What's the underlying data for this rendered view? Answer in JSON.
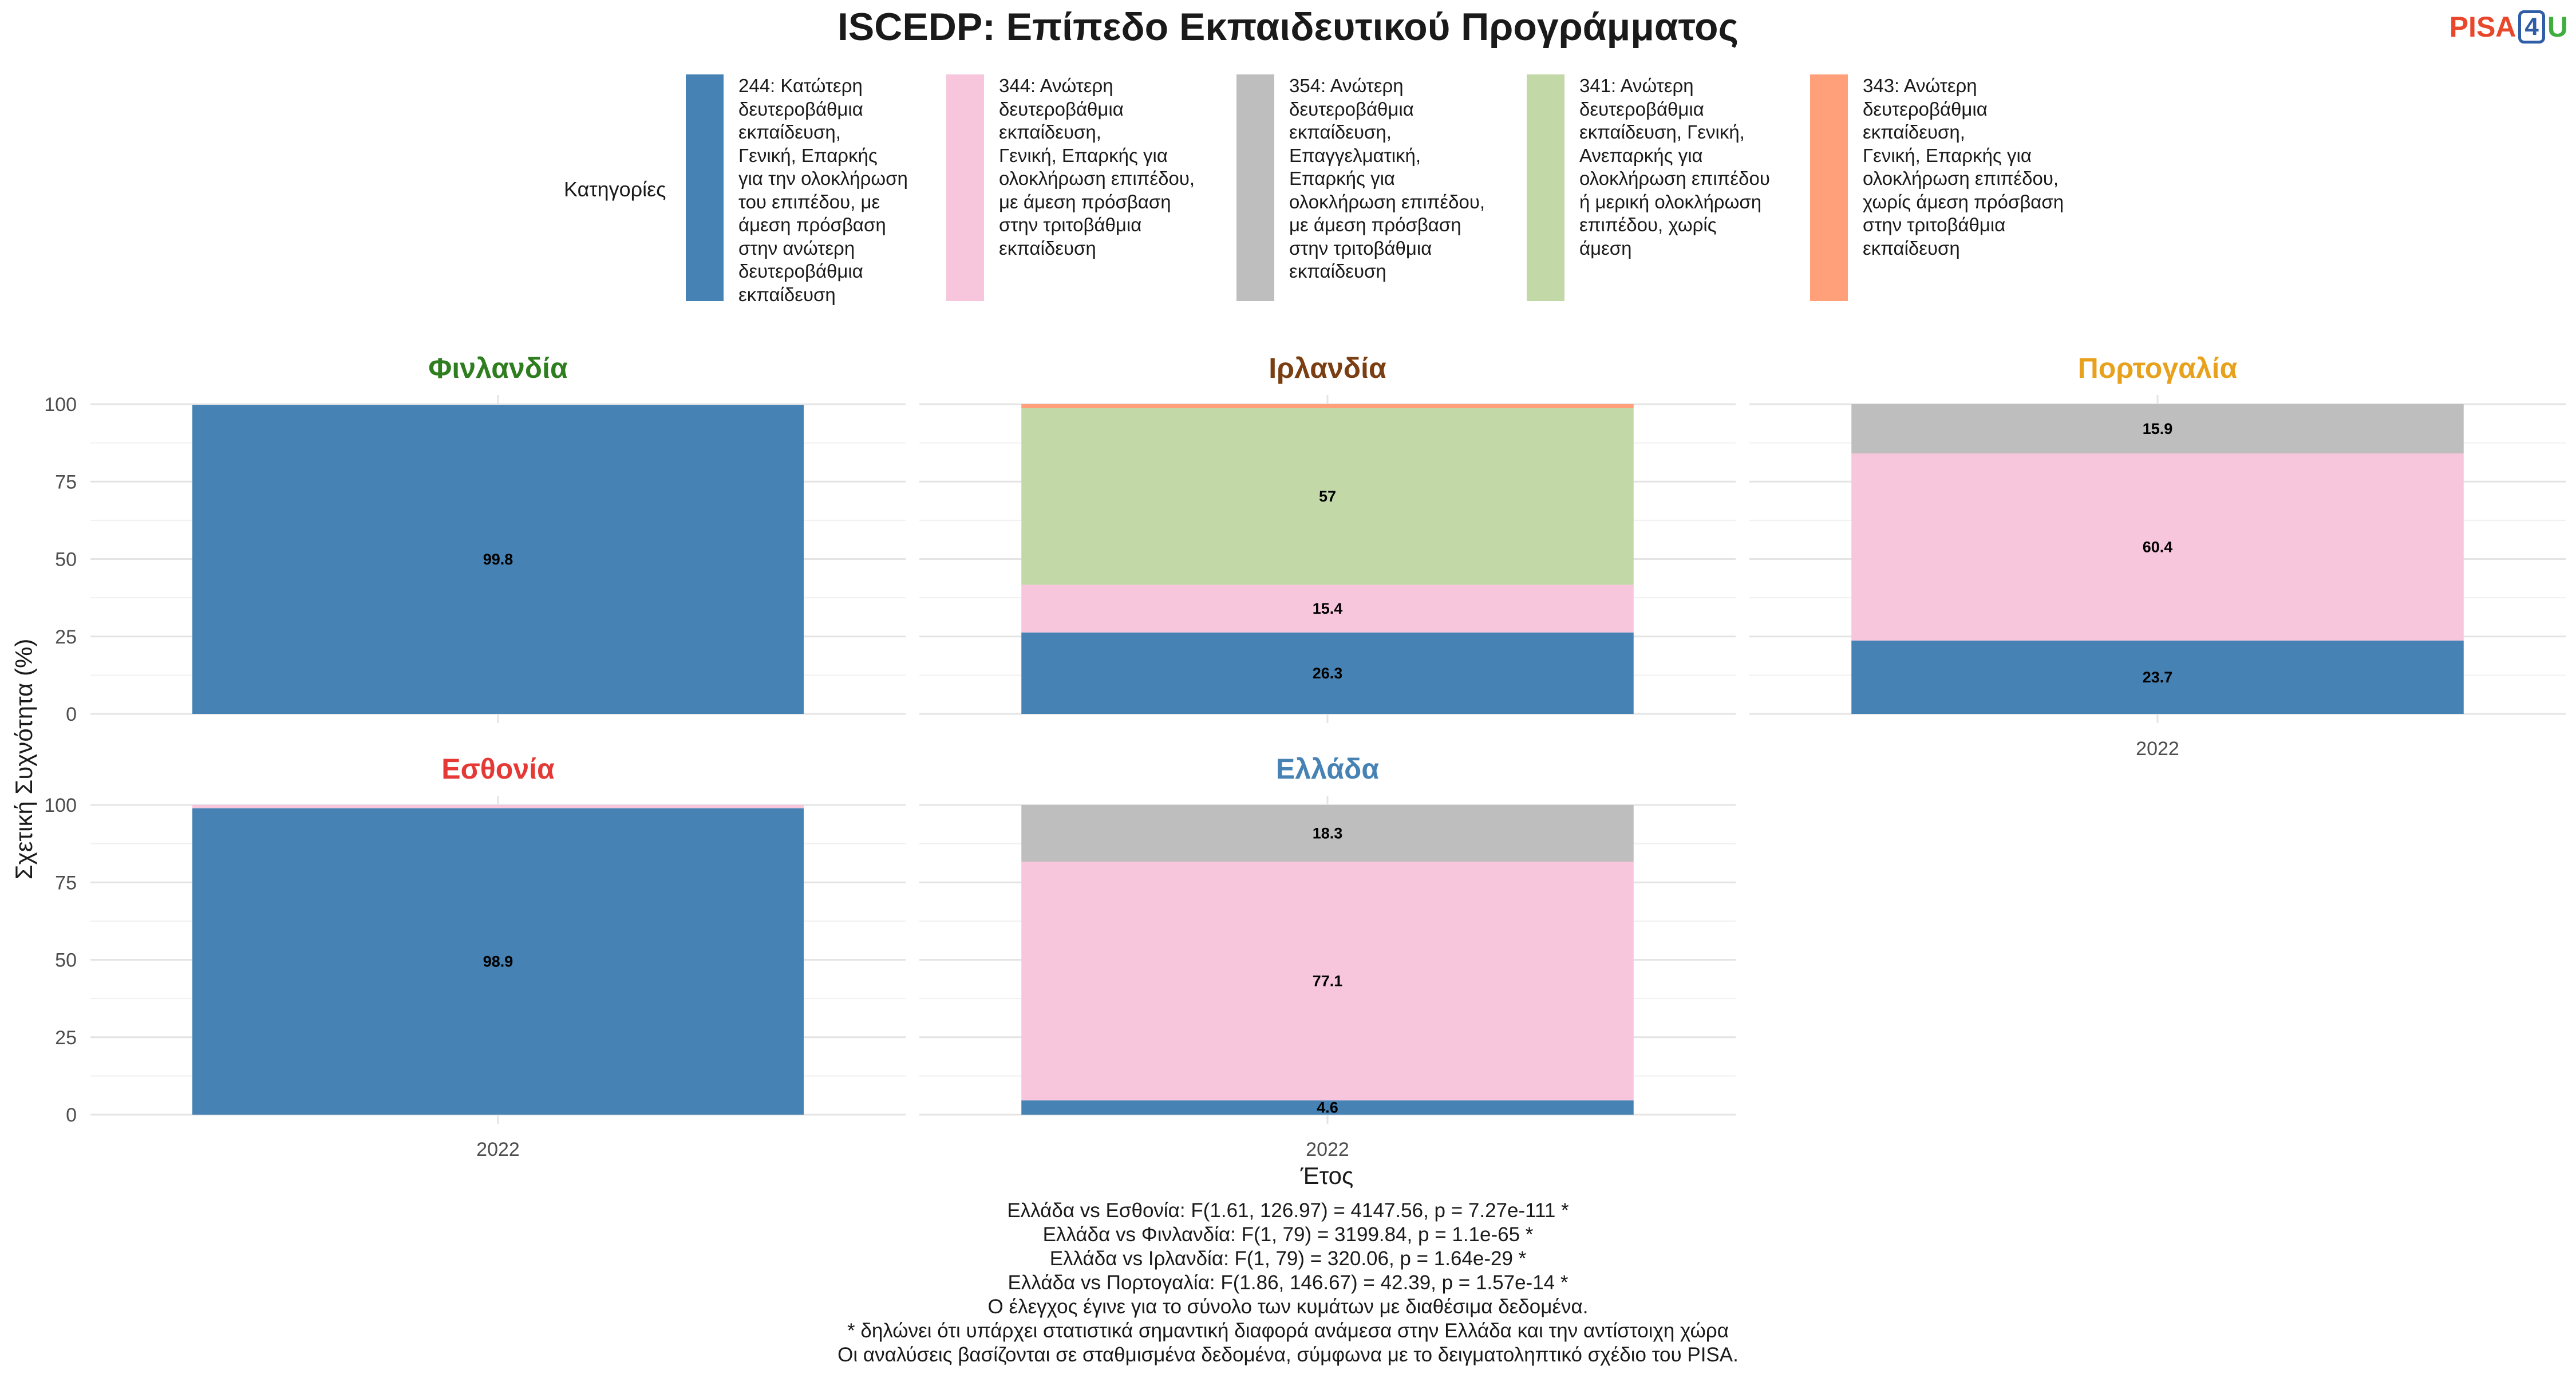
{
  "title": "ISCEDP: Επίπεδο Εκπαιδευτικού Προγράμματος",
  "logo": {
    "part1": "PISA",
    "part2": "4",
    "part3": "U"
  },
  "legend": {
    "title": "Κατηγορίες",
    "items": [
      {
        "label": "244: Κατώτερη\nδευτεροβάθμια\nεκπαίδευση,\nΓενική, Επαρκής\nγια την ολοκλήρωση\nτου επιπέδου, με\nάμεση πρόσβαση\nστην ανώτερη\nδευτεροβάθμια\nεκπαίδευση",
        "color": "#4682b4"
      },
      {
        "label": "344: Ανώτερη\nδευτεροβάθμια\nεκπαίδευση,\nΓενική, Επαρκής για\nολοκλήρωση επιπέδου,\nμε άμεση πρόσβαση\nστην τριτοβάθμια\nεκπαίδευση",
        "color": "#f7c6dc"
      },
      {
        "label": "354: Ανώτερη\nδευτεροβάθμια\nεκπαίδευση,\nΕπαγγελματική,\nΕπαρκής για\nολοκλήρωση επιπέδου,\nμε άμεση πρόσβαση\nστην τριτοβάθμια\nεκπαίδευση",
        "color": "#bebebe"
      },
      {
        "label": "341: Ανώτερη\nδευτεροβάθμια\nεκπαίδευση, Γενική,\nΑνεπαρκής για\nολοκλήρωση επιπέδου\nή μερική ολοκλήρωση\nεπιπέδου, χωρίς\nάμεση",
        "color": "#c3d8a7"
      },
      {
        "label": "343: Ανώτερη\nδευτεροβάθμια\nεκπαίδευση,\nΓενική, Επαρκής για\nολοκλήρωση επιπέδου,\nχωρίς άμεση πρόσβαση\nστην τριτοβάθμια\nεκπαίδευση",
        "color": "#ffa07a"
      }
    ]
  },
  "chart_data": {
    "type": "bar",
    "stacked": true,
    "ylabel": "Σχετική Συχνότητα (%)",
    "xlabel": "Έτος",
    "ylim": [
      0,
      100
    ],
    "yticks": [
      0,
      25,
      50,
      75,
      100
    ],
    "grid": true,
    "legend_position": "top",
    "panels": [
      {
        "country": "Φινλανδία",
        "title_color": "#2e7d1e",
        "category": "2022",
        "segments": [
          {
            "code": "244",
            "value": 99.8,
            "label": "99.8"
          }
        ]
      },
      {
        "country": "Ιρλανδία",
        "title_color": "#7a3e12",
        "category": "2022",
        "segments": [
          {
            "code": "244",
            "value": 26.3,
            "label": "26.3"
          },
          {
            "code": "344",
            "value": 15.4,
            "label": "15.4"
          },
          {
            "code": "341",
            "value": 57,
            "label": "57"
          },
          {
            "code": "343",
            "value": 1.3,
            "label": ""
          }
        ]
      },
      {
        "country": "Πορτογαλία",
        "title_color": "#e8a11c",
        "category": "2022",
        "segments": [
          {
            "code": "244",
            "value": 23.7,
            "label": "23.7"
          },
          {
            "code": "344",
            "value": 60.4,
            "label": "60.4"
          },
          {
            "code": "354",
            "value": 15.9,
            "label": "15.9"
          }
        ]
      },
      {
        "country": "Εσθονία",
        "title_color": "#e53935",
        "category": "2022",
        "segments": [
          {
            "code": "244",
            "value": 98.9,
            "label": "98.9"
          },
          {
            "code": "344",
            "value": 1.1,
            "label": ""
          }
        ]
      },
      {
        "country": "Ελλάδα",
        "title_color": "#4682b4",
        "category": "2022",
        "segments": [
          {
            "code": "244",
            "value": 4.6,
            "label": "4.6"
          },
          {
            "code": "344",
            "value": 77.1,
            "label": "77.1"
          },
          {
            "code": "354",
            "value": 18.3,
            "label": "18.3"
          }
        ]
      }
    ]
  },
  "footer": {
    "lines": [
      "Ελλάδα vs Εσθονία: F(1.61, 126.97) = 4147.56, p = 7.27e-111 *",
      "Ελλάδα vs Φινλανδία: F(1, 79) = 3199.84, p = 1.1e-65 *",
      "Ελλάδα vs Ιρλανδία: F(1, 79) = 320.06, p = 1.64e-29 *",
      "Ελλάδα vs Πορτογαλία: F(1.86, 146.67) = 42.39, p = 1.57e-14 *",
      "Ο έλεγχος έγινε για το σύνολο των κυμάτων με διαθέσιμα δεδομένα.",
      "* δηλώνει ότι υπάρχει στατιστικά σημαντική διαφορά ανάμεσα στην Ελλάδα και την αντίστοιχη χώρα",
      "Οι αναλύσεις βασίζονται σε σταθμισμένα δεδομένα, σύμφωνα με το δειγματοληπτικό σχέδιο του PISA."
    ]
  }
}
